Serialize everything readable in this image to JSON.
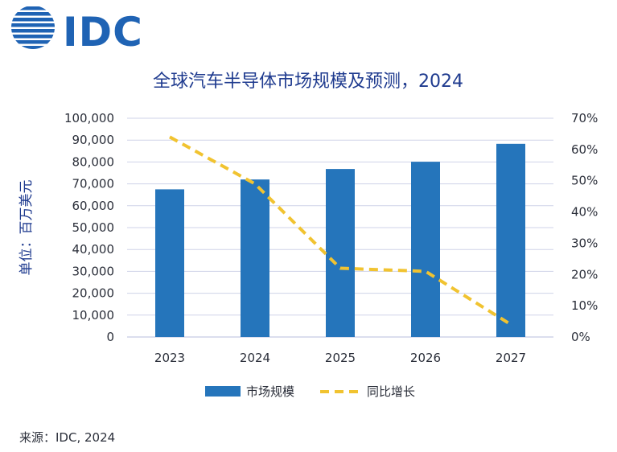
{
  "logo": {
    "text": "IDC",
    "color": "#1f63b4"
  },
  "colors": {
    "bar": "#2575bb",
    "line": "#f1c330",
    "grid": "#cfd3e8",
    "title": "#1f3b8f",
    "text": "#2b2f3a"
  },
  "chart_data": {
    "type": "bar",
    "title": "全球汽车半导体市场规模及预测，2024",
    "ylabel": "单位：百万美元",
    "xlabel": "",
    "categories": [
      "2023",
      "2024",
      "2025",
      "2026",
      "2027"
    ],
    "ylim": [
      0,
      100000
    ],
    "y_ticks": [
      "0",
      "10,000",
      "20,000",
      "30,000",
      "40,000",
      "50,000",
      "60,000",
      "70,000",
      "80,000",
      "90,000",
      "100,000"
    ],
    "y2lim": [
      0,
      70
    ],
    "y2_ticks": [
      "0%",
      "10%",
      "20%",
      "30%",
      "40%",
      "50%",
      "60%",
      "70%"
    ],
    "grid": true,
    "legend_position": "bottom",
    "series": [
      {
        "name": "市场规模",
        "type": "bar",
        "axis": "left",
        "values": [
          67500,
          72000,
          76800,
          80100,
          88300
        ]
      },
      {
        "name": "同比增长",
        "type": "line",
        "style": "dashed",
        "axis": "right",
        "values": [
          64,
          49,
          22,
          21,
          4
        ]
      }
    ]
  },
  "source": "来源：IDC, 2024"
}
